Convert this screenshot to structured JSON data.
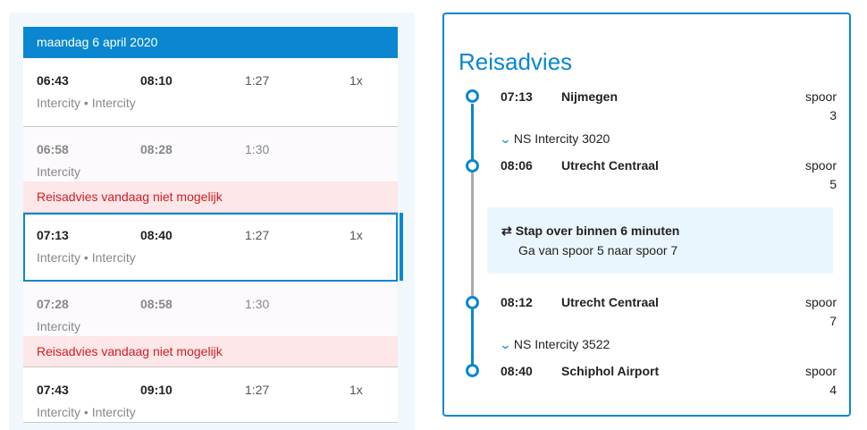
{
  "date": "maandag 6 april 2020",
  "trips": [
    {
      "dep": "06:43",
      "arr": "08:10",
      "duration": "1:27",
      "transfers": "1x",
      "types": "Intercity • Intercity",
      "warning": null,
      "dim": false,
      "selected": false
    },
    {
      "dep": "06:58",
      "arr": "08:28",
      "duration": "1:30",
      "transfers": "",
      "types": "Intercity",
      "warning": "Reisadvies vandaag niet mogelijk",
      "dim": true,
      "selected": false
    },
    {
      "dep": "07:13",
      "arr": "08:40",
      "duration": "1:27",
      "transfers": "1x",
      "types": "Intercity • Intercity",
      "warning": null,
      "dim": false,
      "selected": true
    },
    {
      "dep": "07:28",
      "arr": "08:58",
      "duration": "1:30",
      "transfers": "",
      "types": "Intercity",
      "warning": "Reisadvies vandaag niet mogelijk",
      "dim": true,
      "selected": false
    },
    {
      "dep": "07:43",
      "arr": "09:10",
      "duration": "1:27",
      "transfers": "1x",
      "types": "Intercity • Intercity",
      "warning": null,
      "dim": false,
      "selected": false
    }
  ],
  "advice": {
    "title": "Reisadvies",
    "spoor_label": "spoor",
    "stops": [
      {
        "time": "07:13",
        "name": "Nijmegen",
        "platform": "3"
      },
      {
        "time": "08:06",
        "name": "Utrecht Centraal",
        "platform": "5"
      },
      {
        "time": "08:12",
        "name": "Utrecht Centraal",
        "platform": "7"
      },
      {
        "time": "08:40",
        "name": "Schiphol Airport",
        "platform": "4"
      }
    ],
    "trains": [
      "NS Intercity 3020",
      "NS Intercity 3522"
    ],
    "transfer": {
      "title": "Stap over binnen 6 minuten",
      "detail": "Ga van spoor 5 naar spoor 7"
    }
  },
  "icons": {
    "chevron": "chevron-down-icon",
    "transfer": "transfer-arrows-icon"
  },
  "colors": {
    "accent": "#0a87d0",
    "warning_bg": "#fde7e8",
    "warning_text": "#d31c24",
    "transfer_bg": "#eaf6fd"
  }
}
